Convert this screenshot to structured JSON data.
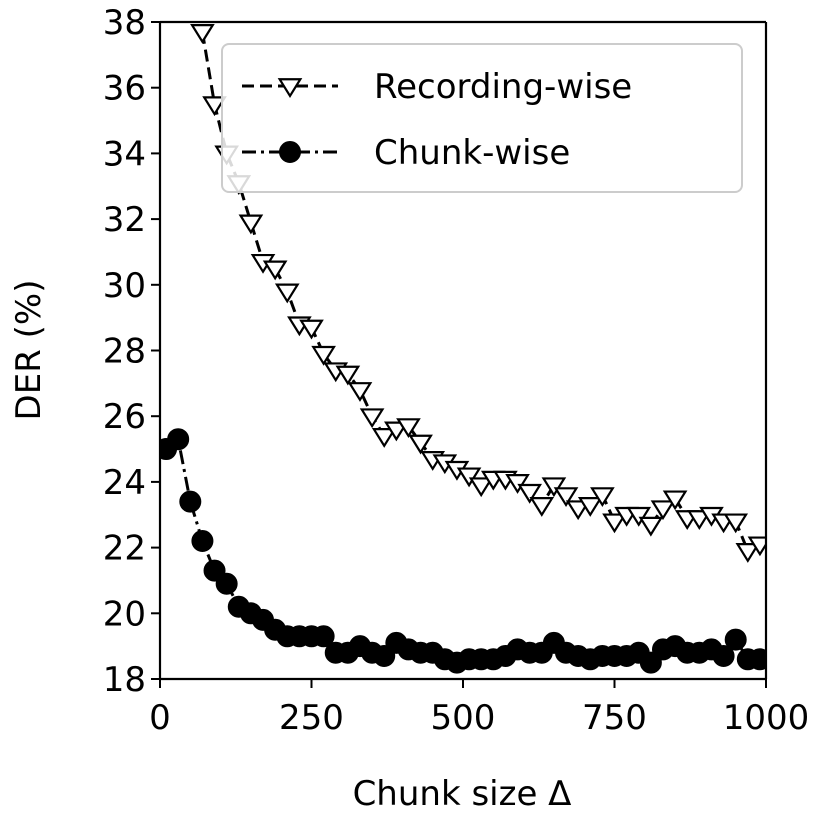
{
  "chart_data": {
    "type": "line",
    "xlabel": "Chunk size Δ",
    "ylabel": "DER (%)",
    "xlim": [
      0,
      1000
    ],
    "ylim": [
      18,
      38
    ],
    "xticks": [
      0,
      250,
      500,
      750,
      1000
    ],
    "yticks": [
      18,
      20,
      22,
      24,
      26,
      28,
      30,
      32,
      34,
      36,
      38
    ],
    "grid": false,
    "legend_position": "top-right",
    "colors": {
      "line": "#000000",
      "marker_fill_open": "#ffffff",
      "marker_fill_solid": "#000000"
    },
    "series": [
      {
        "name": "Recording-wise",
        "marker": "triangle-down-open",
        "line_style": "dashed",
        "points": [
          [
            70,
            37.7
          ],
          [
            90,
            35.5
          ],
          [
            110,
            34.0
          ],
          [
            130,
            33.1
          ],
          [
            150,
            31.9
          ],
          [
            170,
            30.7
          ],
          [
            190,
            30.5
          ],
          [
            210,
            29.8
          ],
          [
            230,
            28.8
          ],
          [
            250,
            28.7
          ],
          [
            270,
            27.9
          ],
          [
            290,
            27.4
          ],
          [
            310,
            27.3
          ],
          [
            330,
            26.8
          ],
          [
            350,
            26.0
          ],
          [
            370,
            25.4
          ],
          [
            390,
            25.6
          ],
          [
            410,
            25.7
          ],
          [
            430,
            25.2
          ],
          [
            450,
            24.7
          ],
          [
            470,
            24.6
          ],
          [
            490,
            24.4
          ],
          [
            510,
            24.2
          ],
          [
            530,
            23.9
          ],
          [
            550,
            24.1
          ],
          [
            570,
            24.1
          ],
          [
            590,
            24.0
          ],
          [
            610,
            23.7
          ],
          [
            630,
            23.3
          ],
          [
            650,
            23.9
          ],
          [
            670,
            23.6
          ],
          [
            690,
            23.2
          ],
          [
            710,
            23.3
          ],
          [
            730,
            23.6
          ],
          [
            750,
            22.8
          ],
          [
            770,
            23.0
          ],
          [
            790,
            23.0
          ],
          [
            810,
            22.7
          ],
          [
            830,
            23.2
          ],
          [
            850,
            23.5
          ],
          [
            870,
            22.9
          ],
          [
            890,
            22.9
          ],
          [
            910,
            23.0
          ],
          [
            930,
            22.8
          ],
          [
            950,
            22.8
          ],
          [
            970,
            21.9
          ],
          [
            990,
            22.1
          ]
        ]
      },
      {
        "name": "Chunk-wise",
        "marker": "circle-filled",
        "line_style": "dashdot",
        "points": [
          [
            10,
            25.0
          ],
          [
            30,
            25.3
          ],
          [
            50,
            23.4
          ],
          [
            70,
            22.2
          ],
          [
            90,
            21.3
          ],
          [
            110,
            20.9
          ],
          [
            130,
            20.2
          ],
          [
            150,
            20.0
          ],
          [
            170,
            19.8
          ],
          [
            190,
            19.5
          ],
          [
            210,
            19.3
          ],
          [
            230,
            19.3
          ],
          [
            250,
            19.3
          ],
          [
            270,
            19.3
          ],
          [
            290,
            18.8
          ],
          [
            310,
            18.8
          ],
          [
            330,
            19.0
          ],
          [
            350,
            18.8
          ],
          [
            370,
            18.7
          ],
          [
            390,
            19.1
          ],
          [
            410,
            18.9
          ],
          [
            430,
            18.8
          ],
          [
            450,
            18.8
          ],
          [
            470,
            18.6
          ],
          [
            490,
            18.5
          ],
          [
            510,
            18.6
          ],
          [
            530,
            18.6
          ],
          [
            550,
            18.6
          ],
          [
            570,
            18.7
          ],
          [
            590,
            18.9
          ],
          [
            610,
            18.8
          ],
          [
            630,
            18.8
          ],
          [
            650,
            19.1
          ],
          [
            670,
            18.8
          ],
          [
            690,
            18.7
          ],
          [
            710,
            18.6
          ],
          [
            730,
            18.7
          ],
          [
            750,
            18.7
          ],
          [
            770,
            18.7
          ],
          [
            790,
            18.8
          ],
          [
            810,
            18.5
          ],
          [
            830,
            18.9
          ],
          [
            850,
            19.0
          ],
          [
            870,
            18.8
          ],
          [
            890,
            18.8
          ],
          [
            910,
            18.9
          ],
          [
            930,
            18.7
          ],
          [
            950,
            19.2
          ],
          [
            970,
            18.6
          ],
          [
            990,
            18.6
          ]
        ]
      }
    ]
  }
}
